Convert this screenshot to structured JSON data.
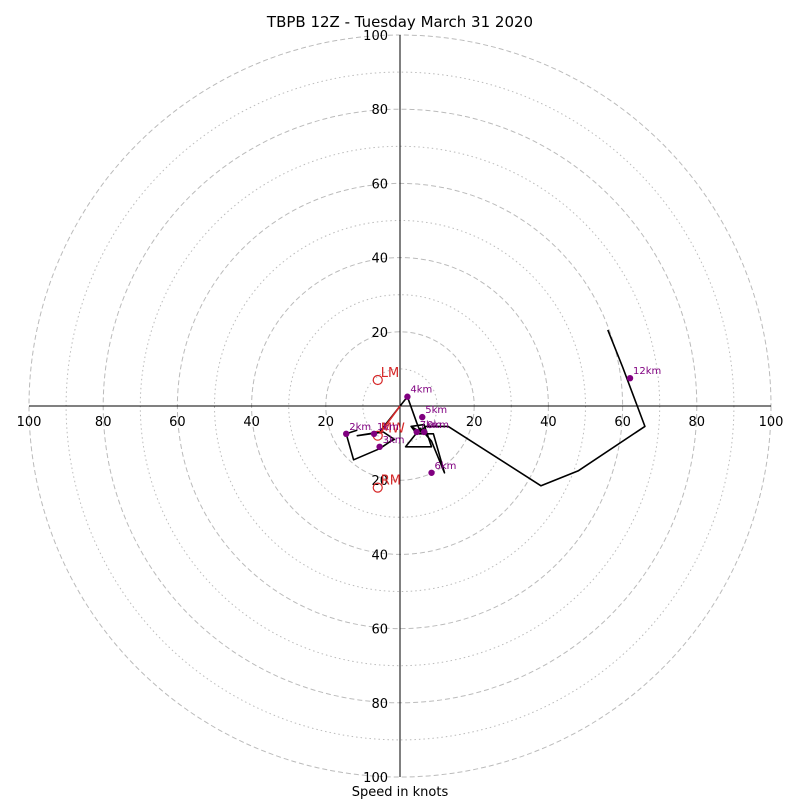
{
  "chart_data": {
    "type": "line",
    "subtype": "hodograph",
    "title": "TBPB 12Z - Tuesday March 31 2020",
    "xlabel": "Speed in knots",
    "ylabel": "",
    "xlim": [
      -100,
      100
    ],
    "ylim": [
      -100,
      100
    ],
    "ring_major": [
      20,
      40,
      60,
      80,
      100
    ],
    "ring_minor": [
      10,
      30,
      50,
      70,
      90
    ],
    "axis_ticks": [
      {
        "value": -100,
        "label": "100"
      },
      {
        "value": -80,
        "label": "80"
      },
      {
        "value": -60,
        "label": "60"
      },
      {
        "value": -40,
        "label": "40"
      },
      {
        "value": -20,
        "label": "20"
      },
      {
        "value": 20,
        "label": "20"
      },
      {
        "value": 40,
        "label": "40"
      },
      {
        "value": 60,
        "label": "60"
      },
      {
        "value": 80,
        "label": "80"
      },
      {
        "value": 100,
        "label": "100"
      }
    ],
    "grid": true,
    "colors": {
      "trace": "#000000",
      "points": "#800080",
      "motion": "#d62728",
      "grid": "#bbbbbb",
      "axis": "#000000"
    },
    "series": [
      {
        "u": [
          -11.5,
          -14.5,
          -12.5,
          -5.5,
          -2.5,
          -1.5,
          -4.5,
          -11.5,
          -5.5,
          2,
          4.5,
          5.5,
          3,
          5,
          6,
          9,
          12,
          8.5,
          5.5,
          1.5,
          8.5,
          6.5,
          3,
          4.5,
          7,
          13,
          38,
          48,
          66,
          60,
          56
        ],
        "v": [
          -6.5,
          -7.5,
          -14.5,
          -11.5,
          -9.5,
          -9,
          -7,
          -8,
          -7,
          2.5,
          -4.5,
          -7,
          -5.5,
          -7.5,
          -7.5,
          -7.5,
          -18,
          -9.5,
          -6,
          -11,
          -11,
          -5,
          -5.5,
          -7.5,
          -5.5,
          -5.5,
          -21.5,
          -17.5,
          -5.5,
          10.5,
          20.5
        ]
      }
    ],
    "labeled_points": [
      {
        "label": "2km",
        "u": -14.5,
        "v": -7.5
      },
      {
        "label": "1km",
        "u": -7,
        "v": -7.5
      },
      {
        "label": "3km",
        "u": -5.5,
        "v": -11
      },
      {
        "label": "4km",
        "u": 2,
        "v": 2.5
      },
      {
        "label": "5km",
        "u": 6,
        "v": -3
      },
      {
        "label": "7km",
        "u": 4.5,
        "v": -7
      },
      {
        "label": "9km",
        "u": 6.5,
        "v": -7
      },
      {
        "label": "6km",
        "u": 8.5,
        "v": -18
      },
      {
        "label": "12km",
        "u": 62,
        "v": 7.5
      }
    ],
    "storm_motion": [
      {
        "label": "LM",
        "u": -6,
        "v": 7
      },
      {
        "label": "MW",
        "u": -6,
        "v": -8
      },
      {
        "label": "RM",
        "u": -6,
        "v": -22
      }
    ],
    "shear_vector": {
      "from_u": 0,
      "from_v": 0,
      "to_u": -5.5,
      "to_v": -7.5
    }
  }
}
